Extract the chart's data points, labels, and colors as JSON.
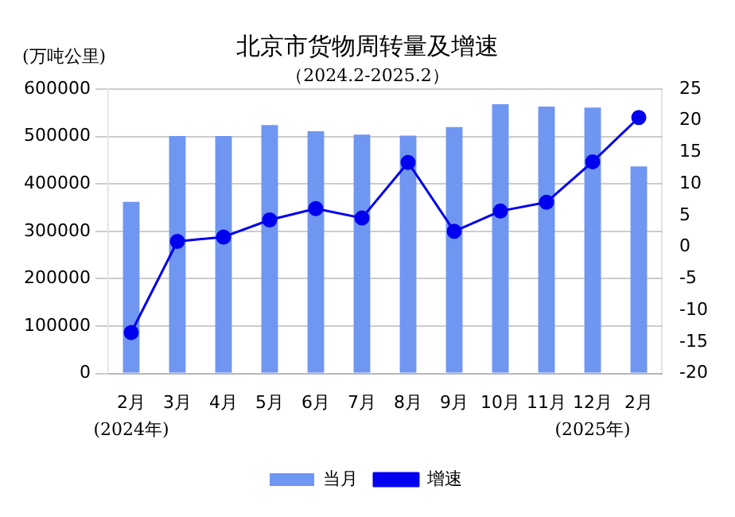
{
  "chart_data": {
    "type": "bar",
    "title": "北京市货物周转量及增速",
    "subtitle": "（2024.2-2025.2）",
    "ylabel": "(万吨公里)",
    "categories": [
      "2月",
      "3月",
      "4月",
      "5月",
      "6月",
      "7月",
      "8月",
      "9月",
      "10月",
      "11月",
      "12月",
      "2月"
    ],
    "series": [
      {
        "name": "当月",
        "color": "#6f96f0",
        "values": [
          362000,
          501000,
          501000,
          524000,
          511000,
          504000,
          502000,
          520000,
          568000,
          563000,
          561000,
          437000
        ]
      },
      {
        "name": "增速",
        "type": "line",
        "axis": "y2",
        "color": "#0000ee",
        "marker": "circle",
        "values": [
          -13.5,
          0.9,
          1.6,
          4.3,
          6.1,
          4.6,
          13.4,
          2.5,
          5.7,
          7.1,
          13.5,
          20.5
        ]
      }
    ],
    "ylim": [
      0,
      600000
    ],
    "yticks": [
      0,
      100000,
      200000,
      300000,
      400000,
      500000,
      600000
    ],
    "y2lim": [
      -20,
      25
    ],
    "y2ticks": [
      -20,
      -15,
      -10,
      -5,
      0,
      5,
      10,
      15,
      20,
      25
    ],
    "annotations": [
      "(2024年)",
      "(2025年)"
    ],
    "grid": "y",
    "legend": "bottom"
  }
}
